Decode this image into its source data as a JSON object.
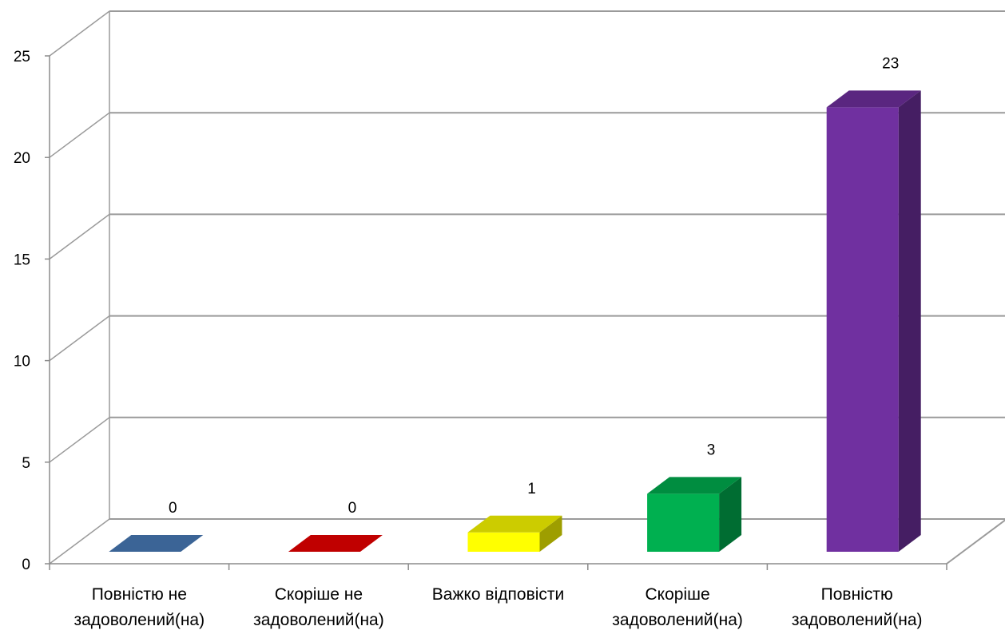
{
  "chart_data": {
    "type": "bar",
    "style": "3d-column",
    "categories": [
      [
        "Повністю не",
        "задоволений(на)"
      ],
      [
        "Скоріше не",
        "задоволений(на)"
      ],
      [
        "Важко відповісти"
      ],
      [
        "Скоріше",
        "задоволений(на)"
      ],
      [
        "Повністю",
        "задоволений(на)"
      ]
    ],
    "values": [
      0,
      0,
      1,
      3,
      23
    ],
    "data_labels": [
      "0",
      "0",
      "1",
      "3",
      "23"
    ],
    "colors": [
      "#3b6496",
      "#c00000",
      "#ffff00",
      "#00b050",
      "#7030a0"
    ],
    "ylim": [
      0,
      25
    ],
    "yticks": [
      0,
      5,
      10,
      15,
      20,
      25
    ],
    "title": "",
    "xlabel": "",
    "ylabel": "",
    "grid": true,
    "legend": "none"
  }
}
